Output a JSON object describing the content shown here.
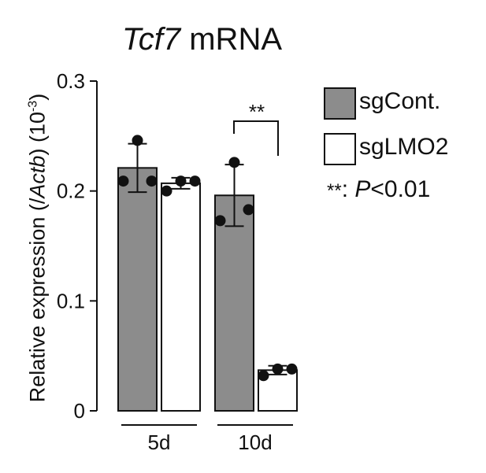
{
  "chart_data": {
    "type": "bar",
    "title": {
      "italic": "Tcf7",
      "rest": " mRNA"
    },
    "ylabel": {
      "pre": "Relative expression (/",
      "italic": "Actb",
      "post": ") (10",
      "sup": "-3",
      "end": ")"
    },
    "yticks": [
      "0",
      "0.1",
      "0.2",
      "0.3"
    ],
    "ylim": [
      0,
      0.3
    ],
    "categories": [
      "5d",
      "10d"
    ],
    "series": [
      {
        "name": "sgCont.",
        "color": "#8c8c8c",
        "values": [
          0.221,
          0.196
        ],
        "errors": [
          0.022,
          0.028
        ],
        "points": [
          [
            0.209,
            0.246,
            0.209
          ],
          [
            0.173,
            0.226,
            0.183
          ]
        ]
      },
      {
        "name": "sgLMO2",
        "color": "#ffffff",
        "values": [
          0.207,
          0.037
        ],
        "errors": [
          0.005,
          0.004
        ],
        "points": [
          [
            0.2,
            0.209,
            0.209
          ],
          [
            0.032,
            0.038,
            0.038
          ]
        ]
      }
    ],
    "significance": {
      "label": "**",
      "between": "10d",
      "note_stars": "**",
      "note_sep": ": ",
      "note_p": "P",
      "note_rest": "<0.01"
    }
  }
}
